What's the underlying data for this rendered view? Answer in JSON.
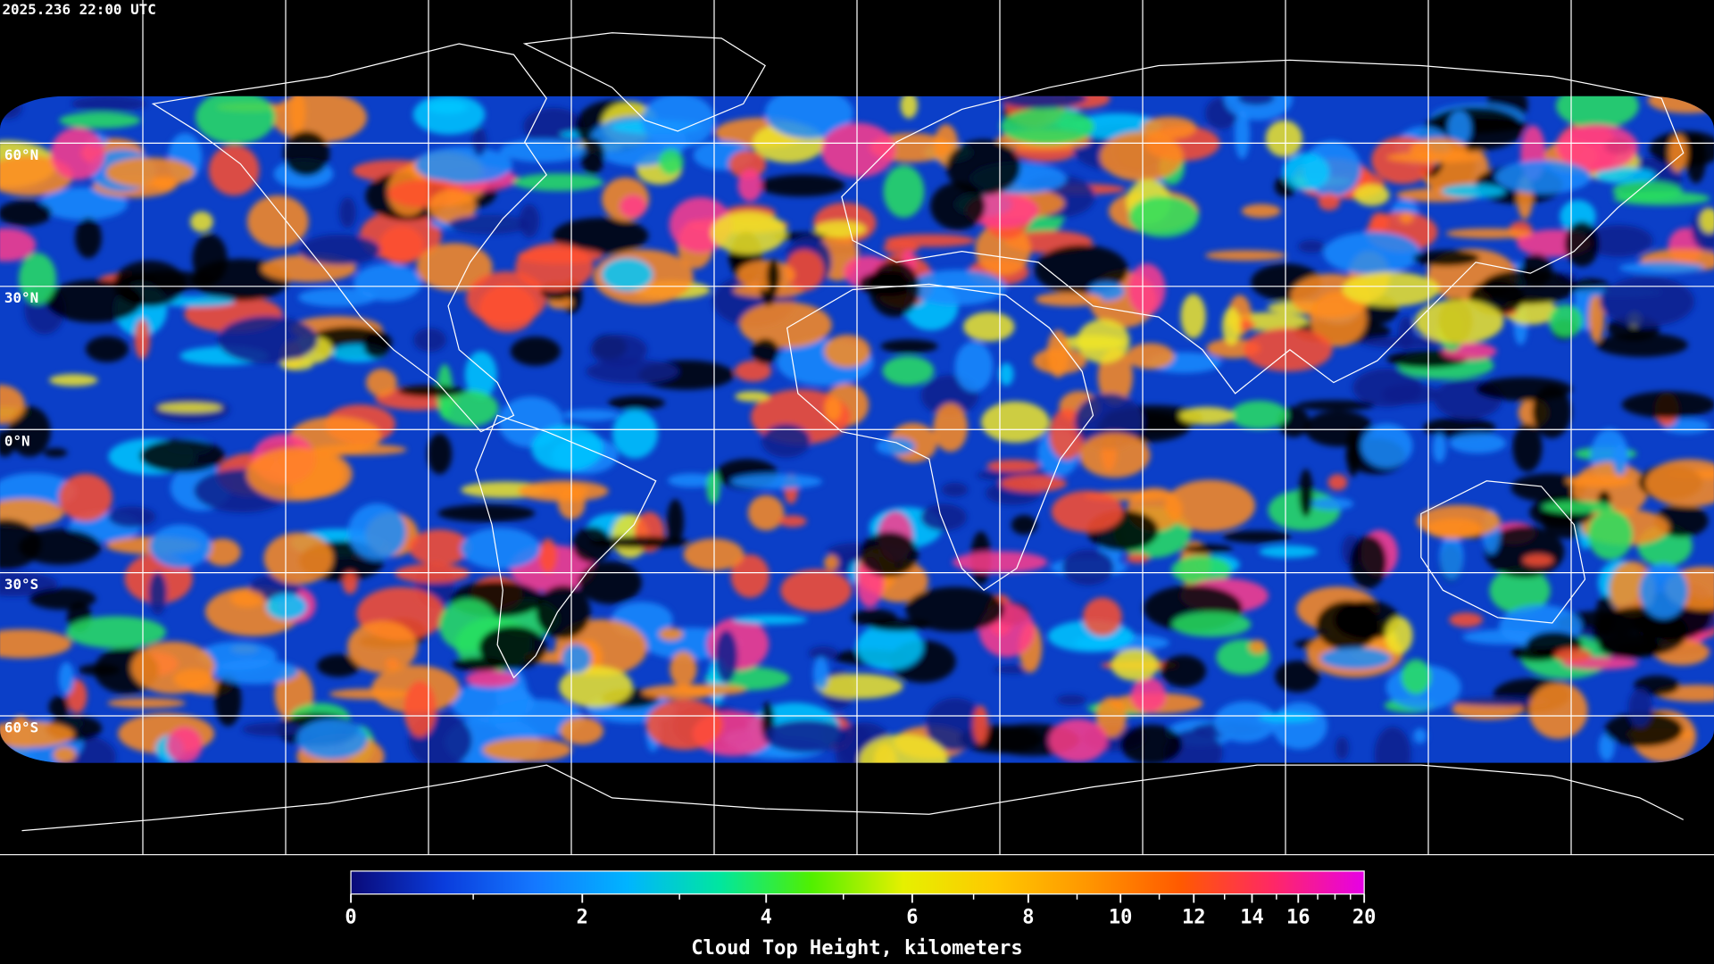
{
  "timestamp": "2025.236 22:00 UTC",
  "map": {
    "ylim": [
      -90,
      90
    ],
    "yticks": [
      {
        "value": 60,
        "label": "60°N"
      },
      {
        "value": 30,
        "label": "30°N"
      },
      {
        "value": 0,
        "label": "0°N"
      },
      {
        "value": -30,
        "label": "30°S"
      },
      {
        "value": -60,
        "label": "60°S"
      }
    ]
  },
  "colorbar": {
    "title": "Cloud Top Height, kilometers",
    "lim": [
      0,
      20
    ],
    "ticks": [
      0,
      2,
      4,
      6,
      8,
      10,
      12,
      14,
      16,
      20
    ],
    "minor_ticks": [
      1,
      3,
      5,
      7,
      9,
      11,
      13,
      15,
      17,
      18,
      19
    ],
    "colors": [
      "#0a0a78",
      "#0a3cdc",
      "#1478ff",
      "#00b4ff",
      "#00e6a0",
      "#50f000",
      "#e6f000",
      "#ffc800",
      "#ff9600",
      "#ff5a00",
      "#ff2864",
      "#e600e6"
    ]
  }
}
